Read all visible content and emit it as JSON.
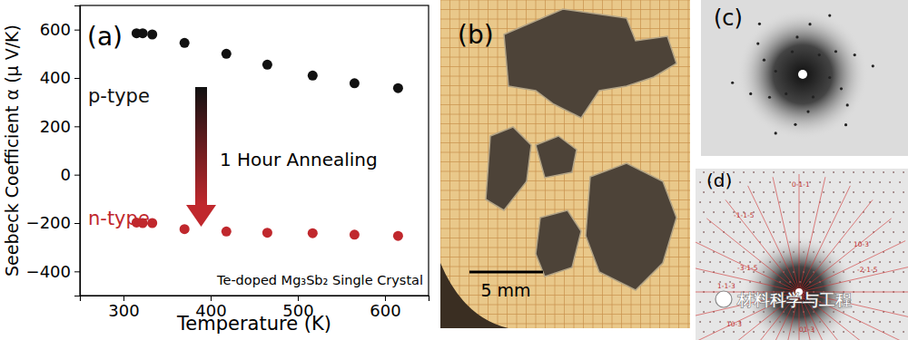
{
  "chart_data": {
    "type": "scatter",
    "panel_label": "(a)",
    "xlabel": "Temperature (K)",
    "ylabel": "Seebeck Coefficient α (μ V/K)",
    "annotations": [
      "1 Hour Annealing",
      "Te-doped Mg₃Sb₂ Single Crystal"
    ],
    "series": [
      {
        "name": "p-type",
        "color": "#111111",
        "marker": "circle",
        "x": [
          315,
          322,
          333,
          370,
          418,
          465,
          517,
          565,
          615
        ],
        "values": [
          585,
          585,
          580,
          545,
          500,
          455,
          410,
          378,
          358
        ]
      },
      {
        "name": "n-type",
        "color": "#c0282d",
        "marker": "circle",
        "x": [
          315,
          322,
          333,
          370,
          418,
          465,
          517,
          565,
          615
        ],
        "values": [
          -198,
          -200,
          -200,
          -225,
          -235,
          -240,
          -242,
          -248,
          -253
        ]
      }
    ],
    "xlim": [
      250,
      650
    ],
    "xticks": [
      300,
      400,
      500,
      600
    ],
    "ylim": [
      -500,
      700
    ],
    "yticks": [
      {
        "value": -400,
        "label": "−400"
      },
      {
        "value": -200,
        "label": "−200"
      },
      0,
      200,
      400,
      600
    ]
  },
  "figure": {
    "panels": [
      {
        "label": "(b)",
        "scale_bar": "5 mm"
      },
      {
        "label": "(c)"
      },
      {
        "label": "(d)",
        "indices": [
          "-1-1-5",
          "0-1-1",
          "-3-1-5",
          "1-1-3",
          "10-3",
          "-2-1-5",
          "00-1",
          "10-3",
          "01-3"
        ]
      }
    ],
    "watermark": "材料科学与工程"
  }
}
